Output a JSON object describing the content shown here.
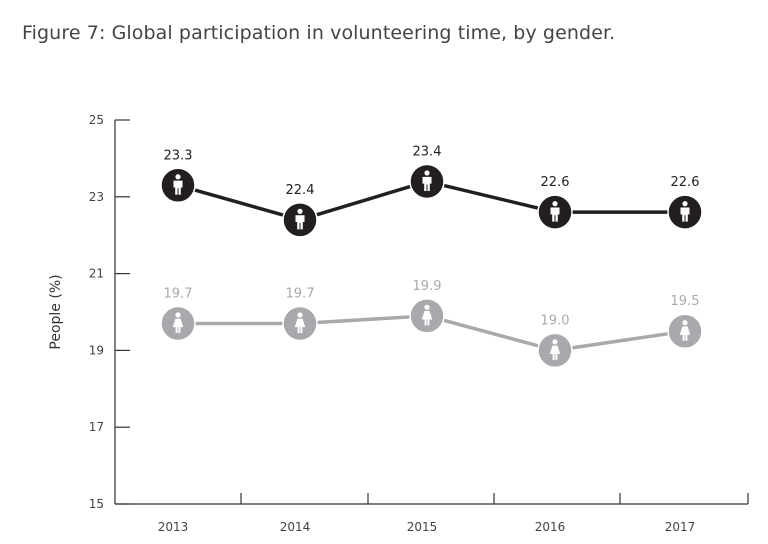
{
  "chart_data": {
    "type": "line",
    "title": "Figure 7: Global participation in volunteering time, by gender.",
    "ylabel": "People (%)",
    "xlabel": "",
    "categories": [
      "2013",
      "2014",
      "2015",
      "2016",
      "2017"
    ],
    "ylim": [
      15,
      25
    ],
    "yticks": [
      "25",
      "23",
      "21",
      "19",
      "17",
      "15"
    ],
    "grid": false,
    "series": [
      {
        "icon": "male-person-icon",
        "color": "#231f20",
        "values": [
          23.3,
          22.4,
          23.4,
          22.6,
          22.6
        ],
        "labels": [
          "23.3",
          "22.4",
          "23.4",
          "22.6",
          "22.6"
        ]
      },
      {
        "icon": "female-person-icon",
        "color": "#a7a9ac",
        "values": [
          19.7,
          19.7,
          19.9,
          19.0,
          19.5
        ],
        "labels": [
          "19.7",
          "19.7",
          "19.9",
          "19.0",
          "19.5"
        ]
      }
    ]
  }
}
